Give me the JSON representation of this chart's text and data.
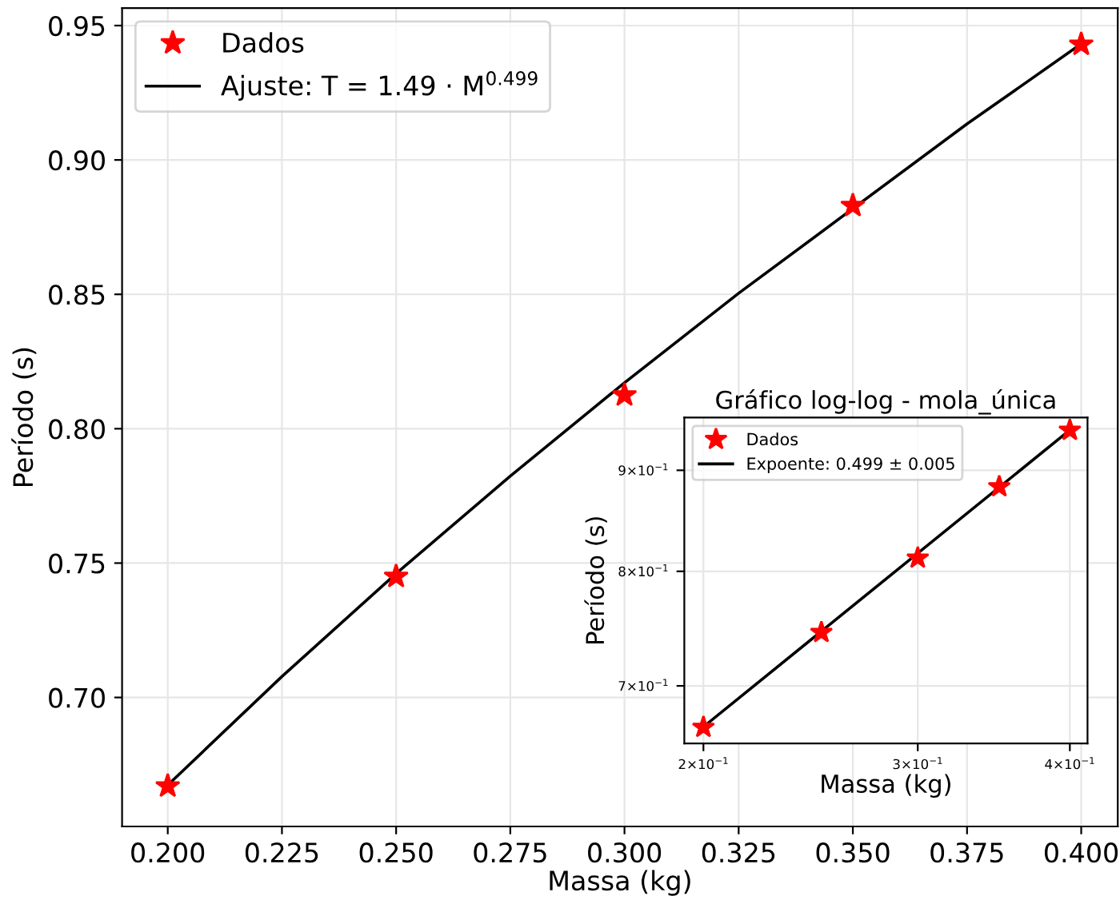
{
  "chart_data": [
    {
      "type": "scatter",
      "xlabel": "Massa (kg)",
      "ylabel": "Período (s)",
      "xlim": [
        0.19,
        0.408
      ],
      "ylim": [
        0.652,
        0.9565
      ],
      "xticks": [
        {
          "value": 0.2,
          "label": "0.200"
        },
        {
          "value": 0.225,
          "label": "0.225"
        },
        {
          "value": 0.25,
          "label": "0.250"
        },
        {
          "value": 0.275,
          "label": "0.275"
        },
        {
          "value": 0.3,
          "label": "0.300"
        },
        {
          "value": 0.325,
          "label": "0.325"
        },
        {
          "value": 0.35,
          "label": "0.350"
        },
        {
          "value": 0.375,
          "label": "0.375"
        },
        {
          "value": 0.4,
          "label": "0.400"
        }
      ],
      "yticks": [
        {
          "value": 0.7,
          "label": "0.70"
        },
        0.75,
        {
          "value": 0.8,
          "label": "0.80"
        },
        0.85,
        {
          "value": 0.9,
          "label": "0.90"
        },
        0.95
      ],
      "grid": true,
      "legend": "top left",
      "series": [
        {
          "name": "Dados",
          "marker": "star",
          "color": "#ff0000",
          "x": [
            0.2,
            0.25,
            0.3,
            0.35,
            0.4
          ],
          "values": [
            0.667,
            0.745,
            0.8125,
            0.883,
            0.943
          ]
        },
        {
          "name": "Ajuste: T = 1.49 · M$^{0.499}$",
          "type": "line",
          "line_style": "solid",
          "color": "#000000",
          "x": [
            0.2,
            0.225,
            0.25,
            0.275,
            0.3,
            0.325,
            0.375,
            0.4
          ],
          "values": [
            0.6674,
            0.7078,
            0.7461,
            0.7824,
            0.8171,
            0.8504,
            0.9134,
            0.9432
          ]
        }
      ]
    },
    {
      "type": "scatter",
      "title": "Gráfico log-log - mola_única",
      "xlabel": "Massa (kg)",
      "ylabel": "Período (s)",
      "log": "xy",
      "xlim": [
        0.1929,
        0.4136
      ],
      "ylim": [
        0.6546,
        0.957
      ],
      "xticks": [
        {
          "value": 0.2,
          "label": "2×10$^{−1}$"
        },
        {
          "value": 0.3,
          "label": "3×10$^{−1}$"
        },
        {
          "value": 0.4,
          "label": "4×10$^{−1}$"
        }
      ],
      "yticks": [
        {
          "value": 0.7,
          "label": "7×10$^{−1}$"
        },
        {
          "value": 0.8,
          "label": "8×10$^{−1}$"
        },
        {
          "value": 0.9,
          "label": "9×10$^{−1}$"
        }
      ],
      "grid": true,
      "legend": "top left",
      "series": [
        {
          "name": "Dados",
          "marker": "star",
          "color": "#ff0000",
          "x": [
            0.2,
            0.25,
            0.3,
            0.35,
            0.4
          ],
          "values": [
            0.667,
            0.745,
            0.8125,
            0.883,
            0.943
          ]
        },
        {
          "name": "Expoente: 0.499 ± 0.005",
          "type": "line",
          "line_style": "solid",
          "color": "#000000",
          "x": [
            0.2,
            0.4
          ],
          "values": [
            0.6674,
            0.9432
          ]
        }
      ]
    }
  ]
}
